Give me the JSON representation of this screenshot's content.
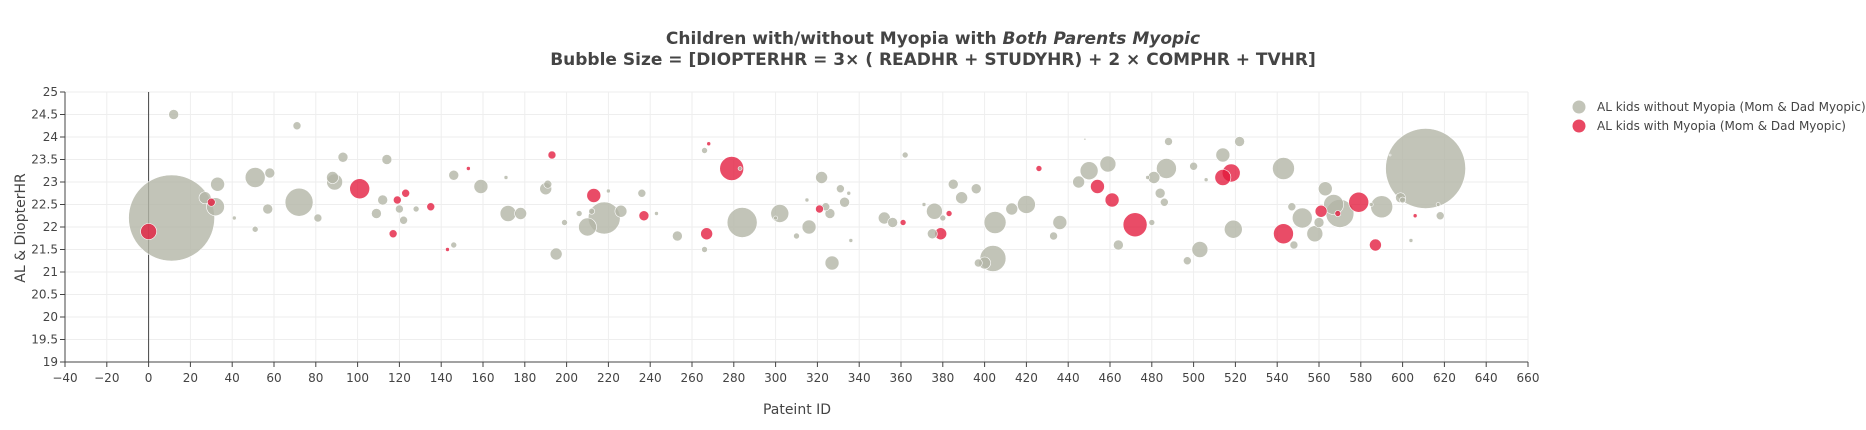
{
  "chart_data": {
    "type": "scatter",
    "title_line1_prefix": "Children with/without Myopia with ",
    "title_line1_emphasis": "Both Parents Myopic",
    "title_line2": "Bubble Size = [DIOPTERHR = 3× ( READHR + STUDYHR) + 2 × COMPHR + TVHR]",
    "xlabel": "Pateint ID",
    "ylabel": "AL & DiopterHR",
    "xlim": [
      -40,
      660
    ],
    "ylim": [
      19,
      25
    ],
    "x_ticks": [
      -40,
      -20,
      0,
      20,
      40,
      60,
      80,
      100,
      120,
      140,
      160,
      180,
      200,
      220,
      240,
      260,
      280,
      300,
      320,
      340,
      360,
      380,
      400,
      420,
      440,
      460,
      480,
      500,
      520,
      540,
      560,
      580,
      600,
      620,
      640,
      660
    ],
    "x_tick_labels": [
      "−40",
      "−20",
      "0",
      "20",
      "40",
      "60",
      "80",
      "100",
      "120",
      "140",
      "160",
      "180",
      "200",
      "220",
      "240",
      "260",
      "280",
      "300",
      "320",
      "340",
      "360",
      "380",
      "400",
      "420",
      "440",
      "460",
      "480",
      "500",
      "520",
      "540",
      "560",
      "580",
      "600",
      "620",
      "640",
      "660"
    ],
    "y_ticks": [
      19,
      19.5,
      20,
      20.5,
      21,
      21.5,
      22,
      22.5,
      23,
      23.5,
      24,
      24.5,
      25
    ],
    "y_tick_labels": [
      "19",
      "19.5",
      "20",
      "20.5",
      "21",
      "21.5",
      "22",
      "22.5",
      "23",
      "23.5",
      "24",
      "24.5",
      "25"
    ],
    "grid": true,
    "legend_position": "top-right",
    "series": [
      {
        "name": "AL kids without Myopia (Mom & Dad Myopic)",
        "color": "#b3b5a6",
        "points": [
          {
            "x": 12,
            "y": 24.5,
            "s": 5
          },
          {
            "x": 11,
            "y": 22.2,
            "s": 43
          },
          {
            "x": 27,
            "y": 22.65,
            "s": 6
          },
          {
            "x": 32,
            "y": 22.45,
            "s": 9
          },
          {
            "x": 33,
            "y": 22.95,
            "s": 7
          },
          {
            "x": 41,
            "y": 22.2,
            "s": 2
          },
          {
            "x": 51,
            "y": 23.1,
            "s": 10
          },
          {
            "x": 51,
            "y": 21.95,
            "s": 3
          },
          {
            "x": 57,
            "y": 22.4,
            "s": 5
          },
          {
            "x": 58,
            "y": 23.2,
            "s": 5
          },
          {
            "x": 71,
            "y": 24.25,
            "s": 4
          },
          {
            "x": 72,
            "y": 22.55,
            "s": 14
          },
          {
            "x": 81,
            "y": 22.2,
            "s": 4
          },
          {
            "x": 88,
            "y": 23.1,
            "s": 6
          },
          {
            "x": 89,
            "y": 23.0,
            "s": 8
          },
          {
            "x": 93,
            "y": 23.55,
            "s": 5
          },
          {
            "x": 109,
            "y": 22.3,
            "s": 5
          },
          {
            "x": 112,
            "y": 22.6,
            "s": 5
          },
          {
            "x": 114,
            "y": 23.5,
            "s": 5
          },
          {
            "x": 120,
            "y": 22.4,
            "s": 4
          },
          {
            "x": 122,
            "y": 22.15,
            "s": 4
          },
          {
            "x": 128,
            "y": 22.4,
            "s": 3
          },
          {
            "x": 146,
            "y": 23.15,
            "s": 5
          },
          {
            "x": 146,
            "y": 21.6,
            "s": 3
          },
          {
            "x": 159,
            "y": 22.9,
            "s": 7
          },
          {
            "x": 171,
            "y": 23.1,
            "s": 2
          },
          {
            "x": 172,
            "y": 22.3,
            "s": 8
          },
          {
            "x": 178,
            "y": 22.3,
            "s": 6
          },
          {
            "x": 190,
            "y": 22.85,
            "s": 6
          },
          {
            "x": 191,
            "y": 22.95,
            "s": 4
          },
          {
            "x": 195,
            "y": 21.4,
            "s": 6
          },
          {
            "x": 199,
            "y": 22.1,
            "s": 3
          },
          {
            "x": 206,
            "y": 22.3,
            "s": 3
          },
          {
            "x": 210,
            "y": 22.0,
            "s": 9
          },
          {
            "x": 212,
            "y": 22.35,
            "s": 3
          },
          {
            "x": 218,
            "y": 22.2,
            "s": 16
          },
          {
            "x": 220,
            "y": 22.8,
            "s": 2
          },
          {
            "x": 226,
            "y": 22.35,
            "s": 6
          },
          {
            "x": 236,
            "y": 22.75,
            "s": 4
          },
          {
            "x": 243,
            "y": 22.3,
            "s": 2
          },
          {
            "x": 253,
            "y": 21.8,
            "s": 5
          },
          {
            "x": 266,
            "y": 23.7,
            "s": 3
          },
          {
            "x": 266,
            "y": 21.5,
            "s": 3
          },
          {
            "x": 283,
            "y": 23.3,
            "s": 2
          },
          {
            "x": 284,
            "y": 22.1,
            "s": 15
          },
          {
            "x": 300,
            "y": 22.2,
            "s": 2
          },
          {
            "x": 302,
            "y": 22.3,
            "s": 9
          },
          {
            "x": 310,
            "y": 21.8,
            "s": 3
          },
          {
            "x": 315,
            "y": 22.6,
            "s": 2
          },
          {
            "x": 316,
            "y": 22.0,
            "s": 7
          },
          {
            "x": 322,
            "y": 23.1,
            "s": 6
          },
          {
            "x": 324,
            "y": 22.45,
            "s": 4
          },
          {
            "x": 326,
            "y": 22.3,
            "s": 5
          },
          {
            "x": 327,
            "y": 21.2,
            "s": 7
          },
          {
            "x": 331,
            "y": 22.85,
            "s": 4
          },
          {
            "x": 333,
            "y": 22.55,
            "s": 5
          },
          {
            "x": 335,
            "y": 22.75,
            "s": 2
          },
          {
            "x": 336,
            "y": 21.7,
            "s": 2
          },
          {
            "x": 352,
            "y": 22.2,
            "s": 6
          },
          {
            "x": 356,
            "y": 22.1,
            "s": 5
          },
          {
            "x": 362,
            "y": 23.6,
            "s": 3
          },
          {
            "x": 371,
            "y": 22.5,
            "s": 2
          },
          {
            "x": 375,
            "y": 21.85,
            "s": 5
          },
          {
            "x": 376,
            "y": 22.35,
            "s": 8
          },
          {
            "x": 380,
            "y": 22.2,
            "s": 3
          },
          {
            "x": 385,
            "y": 22.95,
            "s": 5
          },
          {
            "x": 389,
            "y": 22.65,
            "s": 6
          },
          {
            "x": 396,
            "y": 22.85,
            "s": 5
          },
          {
            "x": 397,
            "y": 21.2,
            "s": 4
          },
          {
            "x": 400,
            "y": 21.2,
            "s": 6
          },
          {
            "x": 404,
            "y": 21.3,
            "s": 13
          },
          {
            "x": 405,
            "y": 22.1,
            "s": 11
          },
          {
            "x": 413,
            "y": 22.4,
            "s": 6
          },
          {
            "x": 420,
            "y": 22.5,
            "s": 9
          },
          {
            "x": 433,
            "y": 21.8,
            "s": 4
          },
          {
            "x": 436,
            "y": 22.1,
            "s": 7
          },
          {
            "x": 445,
            "y": 23.0,
            "s": 6
          },
          {
            "x": 448,
            "y": 23.95,
            "s": 1
          },
          {
            "x": 450,
            "y": 23.25,
            "s": 9
          },
          {
            "x": 459,
            "y": 23.4,
            "s": 8
          },
          {
            "x": 464,
            "y": 21.6,
            "s": 5
          },
          {
            "x": 478,
            "y": 23.1,
            "s": 2
          },
          {
            "x": 480,
            "y": 22.1,
            "s": 3
          },
          {
            "x": 481,
            "y": 23.1,
            "s": 6
          },
          {
            "x": 484,
            "y": 22.75,
            "s": 5
          },
          {
            "x": 486,
            "y": 22.55,
            "s": 4
          },
          {
            "x": 487,
            "y": 23.3,
            "s": 10
          },
          {
            "x": 488,
            "y": 23.9,
            "s": 4
          },
          {
            "x": 497,
            "y": 21.25,
            "s": 4
          },
          {
            "x": 500,
            "y": 23.35,
            "s": 4
          },
          {
            "x": 503,
            "y": 21.5,
            "s": 8
          },
          {
            "x": 506,
            "y": 23.05,
            "s": 2
          },
          {
            "x": 514,
            "y": 23.6,
            "s": 7
          },
          {
            "x": 519,
            "y": 21.95,
            "s": 9
          },
          {
            "x": 522,
            "y": 23.9,
            "s": 5
          },
          {
            "x": 543,
            "y": 23.3,
            "s": 11
          },
          {
            "x": 547,
            "y": 22.45,
            "s": 4
          },
          {
            "x": 548,
            "y": 21.6,
            "s": 4
          },
          {
            "x": 552,
            "y": 22.2,
            "s": 10
          },
          {
            "x": 558,
            "y": 21.85,
            "s": 8
          },
          {
            "x": 560,
            "y": 22.1,
            "s": 5
          },
          {
            "x": 563,
            "y": 22.85,
            "s": 7
          },
          {
            "x": 567,
            "y": 22.5,
            "s": 10
          },
          {
            "x": 570,
            "y": 22.3,
            "s": 14
          },
          {
            "x": 585,
            "y": 22.5,
            "s": 2
          },
          {
            "x": 590,
            "y": 22.45,
            "s": 11
          },
          {
            "x": 599,
            "y": 22.65,
            "s": 5
          },
          {
            "x": 600,
            "y": 22.6,
            "s": 3
          },
          {
            "x": 604,
            "y": 21.7,
            "s": 2
          },
          {
            "x": 611,
            "y": 23.3,
            "s": 40
          },
          {
            "x": 617,
            "y": 22.5,
            "s": 2
          },
          {
            "x": 618,
            "y": 22.25,
            "s": 4
          },
          {
            "x": 594,
            "y": 23.6,
            "s": 1
          }
        ]
      },
      {
        "name": "AL kids with Myopia (Mom & Dad Myopic)",
        "color": "#e31a3c",
        "points": [
          {
            "x": 0,
            "y": 21.9,
            "s": 8
          },
          {
            "x": 30,
            "y": 22.55,
            "s": 4
          },
          {
            "x": 101,
            "y": 22.85,
            "s": 10
          },
          {
            "x": 117,
            "y": 21.85,
            "s": 4
          },
          {
            "x": 119,
            "y": 22.6,
            "s": 4
          },
          {
            "x": 123,
            "y": 22.75,
            "s": 4
          },
          {
            "x": 135,
            "y": 22.45,
            "s": 4
          },
          {
            "x": 143,
            "y": 21.5,
            "s": 2
          },
          {
            "x": 153,
            "y": 23.3,
            "s": 2
          },
          {
            "x": 193,
            "y": 23.6,
            "s": 4
          },
          {
            "x": 213,
            "y": 22.7,
            "s": 7
          },
          {
            "x": 237,
            "y": 22.25,
            "s": 5
          },
          {
            "x": 267,
            "y": 21.85,
            "s": 6
          },
          {
            "x": 268,
            "y": 23.85,
            "s": 2
          },
          {
            "x": 279,
            "y": 23.3,
            "s": 12
          },
          {
            "x": 321,
            "y": 22.4,
            "s": 4
          },
          {
            "x": 361,
            "y": 22.1,
            "s": 3
          },
          {
            "x": 379,
            "y": 21.85,
            "s": 6
          },
          {
            "x": 383,
            "y": 22.3,
            "s": 3
          },
          {
            "x": 426,
            "y": 23.3,
            "s": 3
          },
          {
            "x": 454,
            "y": 22.9,
            "s": 7
          },
          {
            "x": 461,
            "y": 22.6,
            "s": 7
          },
          {
            "x": 472,
            "y": 22.05,
            "s": 12
          },
          {
            "x": 514,
            "y": 23.1,
            "s": 8
          },
          {
            "x": 518,
            "y": 23.2,
            "s": 9
          },
          {
            "x": 543,
            "y": 21.85,
            "s": 10
          },
          {
            "x": 561,
            "y": 22.35,
            "s": 6
          },
          {
            "x": 569,
            "y": 22.3,
            "s": 3
          },
          {
            "x": 579,
            "y": 22.55,
            "s": 10
          },
          {
            "x": 587,
            "y": 21.6,
            "s": 6
          },
          {
            "x": 606,
            "y": 22.25,
            "s": 2
          }
        ]
      }
    ]
  }
}
